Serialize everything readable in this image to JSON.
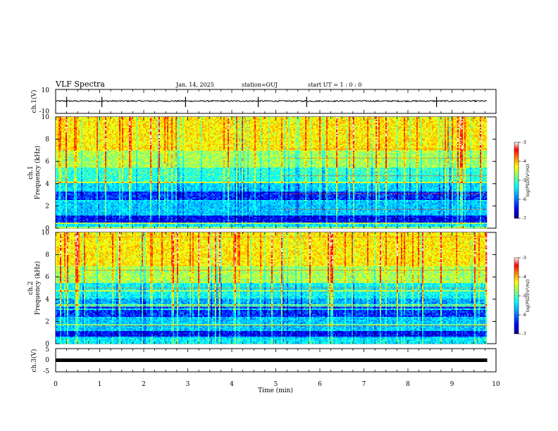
{
  "header": {
    "title": "VLF Spectra",
    "date": "Jan. 14, 2025",
    "station": "station=OUJ",
    "start": "start UT =  1 : 0 : 0"
  },
  "chart_data": [
    {
      "type": "line",
      "name": "ch1-waveform",
      "ylabel": "ch.1(V)",
      "ylim": [
        -10,
        10
      ],
      "ytick_labels": [
        "10",
        "-10"
      ],
      "xlim": [
        0,
        10
      ],
      "baseline_value": 0.3,
      "approx_noise_amplitude": 0.6
    },
    {
      "type": "heatmap",
      "name": "ch1-spectrogram",
      "ylabel_lines": [
        "ch.1",
        "Frequency (kHz)"
      ],
      "ylim": [
        0,
        10
      ],
      "ytick_labels": [
        "0",
        "2",
        "4",
        "6",
        "8",
        "10"
      ],
      "xlim": [
        0,
        9.8
      ],
      "colorbar": {
        "label": "log(PSD)(V²/Hz)",
        "range": [
          -7,
          -3
        ],
        "tick_labels": [
          "-3",
          "-4",
          "-5",
          "-6",
          "-7"
        ],
        "colors": [
          "#00007f",
          "#0000ff",
          "#00a0ff",
          "#00ffff",
          "#80ff80",
          "#ffff00",
          "#ff8000",
          "#ff0000",
          "#ffffff"
        ]
      }
    },
    {
      "type": "heatmap",
      "name": "ch2-spectrogram",
      "ylabel_lines": [
        "ch.2",
        "Frequency (kHz)"
      ],
      "ylim": [
        0,
        10
      ],
      "ytick_labels": [
        "0",
        "2",
        "4",
        "6",
        "8",
        "10"
      ],
      "xlim": [
        0,
        9.8
      ],
      "colorbar": {
        "label": "log(PSD)(V²/Hz)",
        "range": [
          -7,
          -3
        ],
        "tick_labels": [
          "-3",
          "-4",
          "-5",
          "-6",
          "-7"
        ]
      }
    },
    {
      "type": "line",
      "name": "ch3-waveform",
      "ylabel": "ch.3(V)",
      "ylim": [
        -5,
        5
      ],
      "ytick_labels": [
        "5",
        "0",
        "-5"
      ],
      "xlim": [
        0,
        9.8
      ],
      "constant_value": -0.5
    }
  ],
  "x_axis": {
    "label": "Time (min)",
    "range": [
      0,
      10
    ],
    "tick_labels": [
      "0",
      "1",
      "2",
      "3",
      "4",
      "5",
      "6",
      "7",
      "8",
      "9",
      "10"
    ]
  }
}
